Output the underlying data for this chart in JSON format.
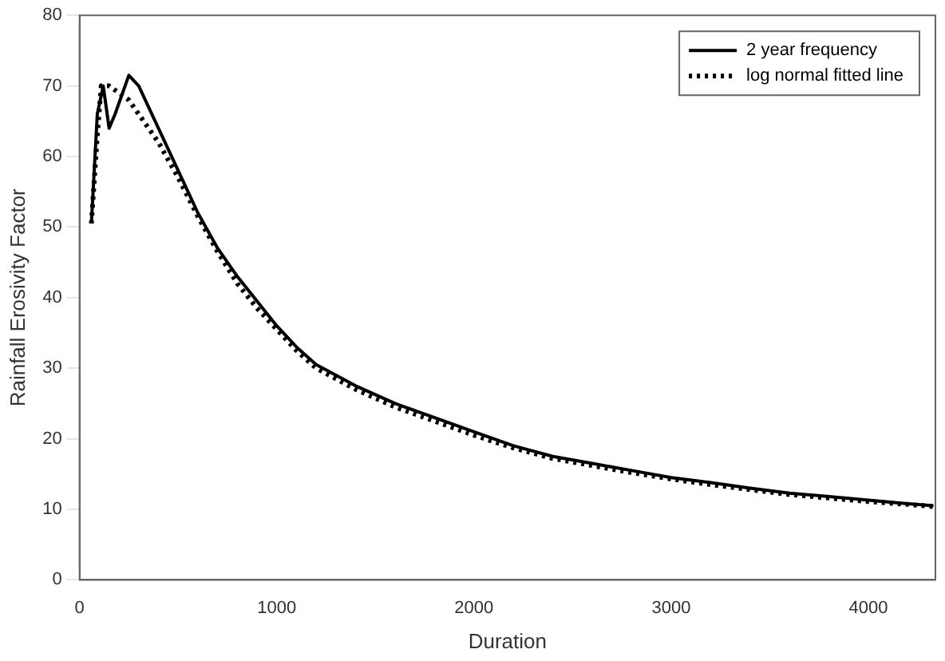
{
  "chart_data": {
    "type": "line",
    "xlabel": "Duration",
    "ylabel": "Rainfall Erosivity Factor",
    "xlim": [
      0,
      4340
    ],
    "xticks": [
      0,
      1000,
      2000,
      3000,
      4000
    ],
    "ylim": [
      0,
      80
    ],
    "yticks": [
      0,
      10,
      20,
      30,
      40,
      50,
      60,
      70,
      80
    ],
    "grid": false,
    "legend": "top right",
    "marker": "none",
    "series": [
      {
        "name": "2 year frequency",
        "color": "#000000",
        "line_style": "solid",
        "x": [
          60,
          90,
          120,
          150,
          180,
          250,
          300,
          400,
          500,
          600,
          700,
          800,
          900,
          1000,
          1100,
          1200,
          1400,
          1600,
          1800,
          2000,
          2200,
          2400,
          2600,
          2800,
          3000,
          3200,
          3400,
          3600,
          3800,
          4000,
          4200,
          4330
        ],
        "values": [
          50.5,
          66,
          70,
          64,
          66,
          71.5,
          70,
          64,
          58,
          52,
          47,
          43,
          39.5,
          36,
          33,
          30.5,
          27.5,
          25,
          23,
          21,
          19,
          17.5,
          16.5,
          15.5,
          14.5,
          13.8,
          13,
          12.3,
          11.8,
          11.3,
          10.8,
          10.5
        ]
      },
      {
        "name": "log normal fitted line",
        "color": "#000000",
        "line_style": "dotted",
        "x": [
          60,
          90,
          110,
          150,
          200,
          250,
          300,
          400,
          500,
          600,
          700,
          800,
          900,
          1000,
          1100,
          1200,
          1400,
          1600,
          1800,
          2000,
          2200,
          2400,
          2600,
          2800,
          3000,
          3200,
          3400,
          3600,
          3800,
          4000,
          4200,
          4330
        ],
        "values": [
          50.5,
          63,
          70,
          70,
          69,
          68,
          66,
          62,
          57,
          51.5,
          46.5,
          42,
          38.5,
          35.5,
          32.5,
          30,
          27,
          24.5,
          22.5,
          20.5,
          18.7,
          17.2,
          16.2,
          15.2,
          14.3,
          13.5,
          12.8,
          12.1,
          11.6,
          11.1,
          10.7,
          10.4
        ]
      }
    ]
  }
}
